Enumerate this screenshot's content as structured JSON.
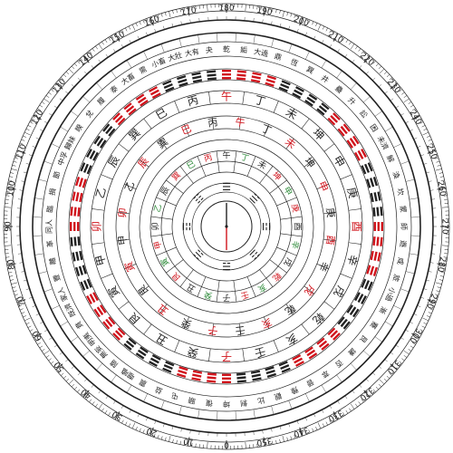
{
  "degree_labels": [
    "0",
    "10",
    "20",
    "30",
    "40",
    "50",
    "60",
    "70",
    "80",
    "90",
    "100",
    "110",
    "120",
    "130",
    "140",
    "150",
    "160",
    "170",
    "180",
    "190",
    "200",
    "210",
    "220",
    "230",
    "240",
    "250",
    "260",
    "270",
    "280",
    "290",
    "300",
    "310",
    "320",
    "330",
    "340",
    "350"
  ],
  "rings": {
    "mountains_24": [
      "午",
      "丁",
      "未",
      "坤",
      "申",
      "庚",
      "酉",
      "辛",
      "戌",
      "乾",
      "亥",
      "壬",
      "子",
      "癸",
      "丑",
      "艮",
      "寅",
      "甲",
      "卯",
      "乙",
      "辰",
      "巽",
      "巳",
      "丙"
    ],
    "hexagram_names_64": [
      "乾",
      "姤",
      "大過",
      "鼎",
      "恆",
      "巽",
      "井",
      "蠱",
      "升",
      "訟",
      "困",
      "未濟",
      "解",
      "渙",
      "坎",
      "蒙",
      "師",
      "遯",
      "咸",
      "旅",
      "小過",
      "漸",
      "蹇",
      "艮",
      "謙",
      "否",
      "萃",
      "晉",
      "豫",
      "觀",
      "比",
      "剝",
      "坤",
      "復",
      "頤",
      "屯",
      "益",
      "震",
      "噬嗑",
      "隨",
      "無妄",
      "明夷",
      "賁",
      "既濟",
      "家人",
      "豐",
      "離",
      "革",
      "同人",
      "臨",
      "損",
      "節",
      "中孚",
      "歸妹",
      "睽",
      "兌",
      "履",
      "泰",
      "大畜",
      "需",
      "小畜",
      "大壯",
      "大有",
      "夬"
    ],
    "stems_ring": [
      "丙",
      "午",
      "丁",
      "未",
      "坤",
      "申",
      "庚",
      "酉",
      "辛",
      "戌",
      "乾",
      "亥",
      "壬",
      "子",
      "癸",
      "丑",
      "艮",
      "寅",
      "甲",
      "卯",
      "乙",
      "辰",
      "巽",
      "巳"
    ],
    "eight_trigrams": [
      "☰",
      "☱",
      "☲",
      "☳",
      "☴",
      "☵",
      "☶",
      "☷"
    ]
  },
  "colors": {
    "accent_red": "#d0141c",
    "accent_green": "#2e8b3a",
    "ink": "#222222"
  }
}
